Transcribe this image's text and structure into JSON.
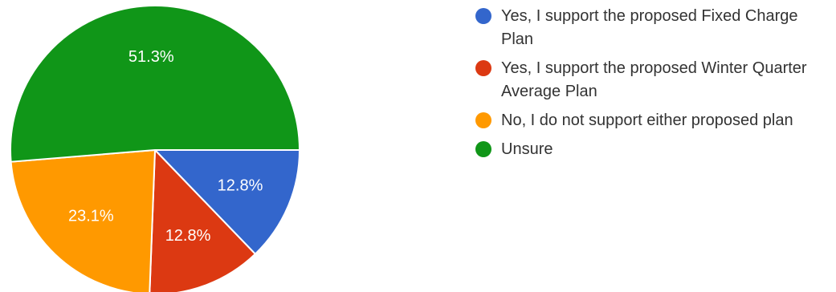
{
  "chart_data": {
    "type": "pie",
    "slices": [
      {
        "name": "Yes, I support the proposed Fixed Charge Plan",
        "value": 12.8,
        "label": "12.8%",
        "color": "#3366cc"
      },
      {
        "name": "Yes, I support the proposed Winter Quarter Average Plan",
        "value": 12.8,
        "label": "12.8%",
        "color": "#dc3912"
      },
      {
        "name": "No, I do not support either proposed plan",
        "value": 23.1,
        "label": "23.1%",
        "color": "#ff9900"
      },
      {
        "name": "Unsure",
        "value": 51.3,
        "label": "51.3%",
        "color": "#109618"
      }
    ],
    "legend_position": "right"
  }
}
